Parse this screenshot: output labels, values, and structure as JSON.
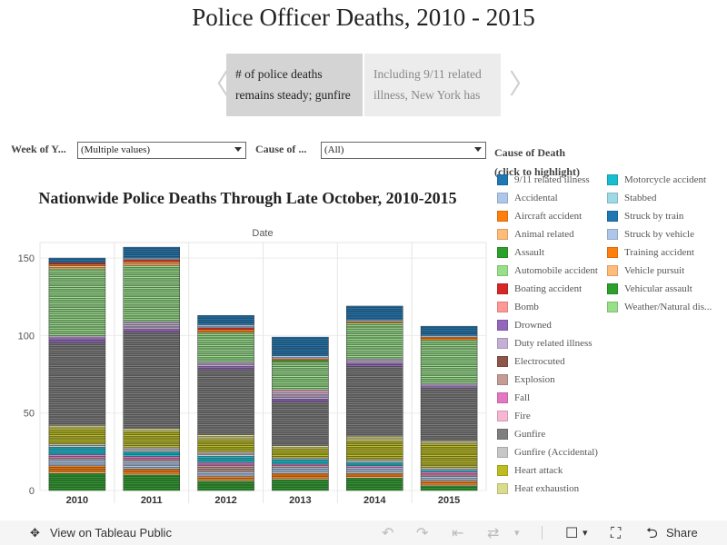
{
  "page_title": "Police Officer Deaths, 2010 - 2015",
  "story": {
    "points": [
      "# of police deaths remains steady; gunfire",
      "Including 9/11 related illness, New York has"
    ]
  },
  "filters": [
    {
      "label": "Week of Y...",
      "value": "(Multiple values)"
    },
    {
      "label": "Cause of ...",
      "value": "(All)"
    }
  ],
  "legend": {
    "title": "Cause of Death",
    "subtitle": "(click to highlight)",
    "items": [
      {
        "label": "9/11 related illness",
        "color": "#1f77b4"
      },
      {
        "label": "Accidental",
        "color": "#aec7e8"
      },
      {
        "label": "Aircraft accident",
        "color": "#ff7f0e"
      },
      {
        "label": "Animal related",
        "color": "#ffbb78"
      },
      {
        "label": "Assault",
        "color": "#2ca02c"
      },
      {
        "label": "Automobile accident",
        "color": "#98df8a"
      },
      {
        "label": "Boating accident",
        "color": "#d62728"
      },
      {
        "label": "Bomb",
        "color": "#ff9896"
      },
      {
        "label": "Drowned",
        "color": "#9467bd"
      },
      {
        "label": "Duty related illness",
        "color": "#c5b0d5"
      },
      {
        "label": "Electrocuted",
        "color": "#8c564b"
      },
      {
        "label": "Explosion",
        "color": "#c49c94"
      },
      {
        "label": "Fall",
        "color": "#e377c2"
      },
      {
        "label": "Fire",
        "color": "#f7b6d2"
      },
      {
        "label": "Gunfire",
        "color": "#7f7f7f"
      },
      {
        "label": "Gunfire (Accidental)",
        "color": "#c7c7c7"
      },
      {
        "label": "Heart attack",
        "color": "#bcbd22"
      },
      {
        "label": "Heat exhaustion",
        "color": "#dbdb8d"
      },
      {
        "label": "Motorcycle accident",
        "color": "#17becf"
      },
      {
        "label": "Stabbed",
        "color": "#9edae5"
      },
      {
        "label": "Struck by train",
        "color": "#1f77b4"
      },
      {
        "label": "Struck by vehicle",
        "color": "#aec7e8"
      },
      {
        "label": "Training accident",
        "color": "#ff7f0e"
      },
      {
        "label": "Vehicle pursuit",
        "color": "#ffbb78"
      },
      {
        "label": "Vehicular assault",
        "color": "#2ca02c"
      },
      {
        "label": "Weather/Natural dis...",
        "color": "#98df8a"
      }
    ]
  },
  "chart_data": {
    "type": "bar",
    "stacked": true,
    "title": "Nationwide Police Deaths Through Late October, 2010-2015",
    "xlabel": "Date",
    "ylabel": "",
    "categories": [
      "2010",
      "2011",
      "2012",
      "2013",
      "2014",
      "2015"
    ],
    "yticks": [
      0,
      50,
      100,
      150
    ],
    "ylim": [
      0,
      160
    ],
    "series": [
      {
        "name": "Assault",
        "values": [
          11,
          10,
          6,
          7,
          8,
          3
        ]
      },
      {
        "name": "Animal related",
        "values": [
          1,
          1,
          1,
          1,
          1,
          1
        ]
      },
      {
        "name": "Aircraft accident",
        "values": [
          4,
          3,
          2,
          3,
          2,
          2
        ]
      },
      {
        "name": "Accidental",
        "values": [
          4,
          5,
          3,
          4,
          4,
          3
        ]
      },
      {
        "name": "Explosion",
        "values": [
          1,
          1,
          4,
          1,
          0,
          1
        ]
      },
      {
        "name": "Fall",
        "values": [
          2,
          2,
          2,
          1,
          1,
          2
        ]
      },
      {
        "name": "Motorcycle accident",
        "values": [
          5,
          3,
          4,
          3,
          2,
          1
        ]
      },
      {
        "name": "Gunfire (Accidental)",
        "values": [
          2,
          3,
          3,
          1,
          2,
          2
        ]
      },
      {
        "name": "Heart attack",
        "values": [
          10,
          10,
          8,
          6,
          12,
          15
        ]
      },
      {
        "name": "Heat exhaustion",
        "values": [
          2,
          2,
          3,
          2,
          3,
          2
        ]
      },
      {
        "name": "Gunfire",
        "values": [
          53,
          62,
          42,
          28,
          45,
          34
        ]
      },
      {
        "name": "Drowned",
        "values": [
          3,
          2,
          2,
          2,
          2,
          1
        ]
      },
      {
        "name": "Duty related illness",
        "values": [
          2,
          5,
          3,
          4,
          3,
          2
        ]
      },
      {
        "name": "Fire",
        "values": [
          0,
          0,
          0,
          2,
          0,
          0
        ]
      },
      {
        "name": "Automobile accident",
        "values": [
          43,
          36,
          19,
          18,
          23,
          28
        ]
      },
      {
        "name": "Vehicular assault",
        "values": [
          0,
          0,
          0,
          1,
          0,
          0
        ]
      },
      {
        "name": "Animal related (2)",
        "values": [
          1,
          0,
          0,
          0,
          0,
          0
        ]
      },
      {
        "name": "Vehicle pursuit",
        "values": [
          1,
          2,
          0,
          0,
          0,
          0
        ]
      },
      {
        "name": "Aircraft accident (2)",
        "values": [
          1,
          1,
          2,
          1,
          1,
          2
        ]
      },
      {
        "name": "Boating accident",
        "values": [
          1,
          1,
          1,
          0,
          0,
          0
        ]
      },
      {
        "name": "Struck by vehicle",
        "values": [
          0,
          1,
          2,
          2,
          1,
          1
        ]
      },
      {
        "name": "Struck by train",
        "values": [
          2,
          4,
          4,
          7,
          6,
          4
        ]
      },
      {
        "name": "9/11 related illness",
        "values": [
          1,
          3,
          2,
          5,
          3,
          2
        ]
      }
    ]
  }
}
